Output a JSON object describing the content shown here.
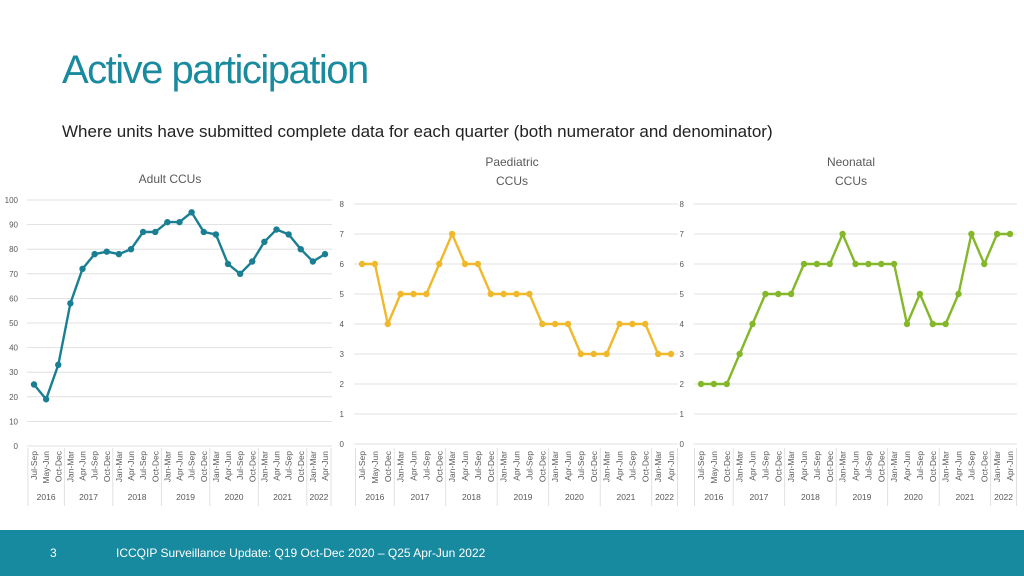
{
  "page": {
    "title": "Active participation",
    "subtitle": "Where units have submitted complete data for each quarter (both numerator and denominator)",
    "footer_number": "3",
    "footer_text": "ICCQIP Surveillance Update: Q19 Oct-Dec 2020 – Q25 Apr-Jun 2022"
  },
  "colors": {
    "title": "#1a8a9e",
    "footer_bg": "#178a9f",
    "adult": "#1a7f93",
    "paediatric": "#f0b92c",
    "neonatal": "#84b82a",
    "grid": "#d9d9d9",
    "tick_text": "#595959"
  },
  "chart_data": [
    {
      "type": "line",
      "title": "Adult CCUs",
      "ylim": [
        0,
        100
      ],
      "yticks": [
        0,
        10,
        20,
        30,
        40,
        50,
        60,
        70,
        80,
        90,
        100
      ],
      "grid": true,
      "categories": [
        "Jul-Sep",
        "May-Jun",
        "Oct-Dec",
        "Jan-Mar",
        "Apr-Jun",
        "Jul-Sep",
        "Oct-Dec",
        "Jan-Mar",
        "Apr-Jun",
        "Jul-Sep",
        "Oct-Dec",
        "Jan-Mar",
        "Apr-Jun",
        "Jul-Sep",
        "Oct-Dec",
        "Jan-Mar",
        "Apr-Jun",
        "Jul-Sep",
        "Oct-Dec",
        "Jan-Mar",
        "Apr-Jun",
        "Jul-Sep",
        "Oct-Dec",
        "Jan-Mar",
        "Apr-Jun"
      ],
      "years": [
        {
          "label": "2016",
          "span": 3
        },
        {
          "label": "2017",
          "span": 4
        },
        {
          "label": "2018",
          "span": 4
        },
        {
          "label": "2019",
          "span": 4
        },
        {
          "label": "2020",
          "span": 4
        },
        {
          "label": "2021",
          "span": 4
        },
        {
          "label": "2022",
          "span": 2
        }
      ],
      "series": [
        {
          "values": [
            25,
            19,
            33,
            58,
            72,
            78,
            79,
            78,
            80,
            87,
            87,
            91,
            91,
            95,
            87,
            86,
            74,
            70,
            75,
            83,
            88,
            86,
            80,
            75,
            78
          ]
        }
      ]
    },
    {
      "type": "line",
      "title": "Paediatric CCUs",
      "ylim": [
        0,
        8
      ],
      "yticks": [
        0,
        1,
        2,
        3,
        4,
        5,
        6,
        7,
        8
      ],
      "grid": true,
      "categories": [
        "Jul-Sep",
        "May-Jun",
        "Oct-Dec",
        "Jan-Mar",
        "Apr-Jun",
        "Jul-Sep",
        "Oct-Dec",
        "Jan-Mar",
        "Apr-Jun",
        "Jul-Sep",
        "Oct-Dec",
        "Jan-Mar",
        "Apr-Jun",
        "Jul-Sep",
        "Oct-Dec",
        "Jan-Mar",
        "Apr-Jun",
        "Jul-Sep",
        "Oct-Dec",
        "Jan-Mar",
        "Apr-Jun",
        "Jul-Sep",
        "Oct-Dec",
        "Jan-Mar",
        "Apr-Jun"
      ],
      "years": [
        {
          "label": "2016",
          "span": 3
        },
        {
          "label": "2017",
          "span": 4
        },
        {
          "label": "2018",
          "span": 4
        },
        {
          "label": "2019",
          "span": 4
        },
        {
          "label": "2020",
          "span": 4
        },
        {
          "label": "2021",
          "span": 4
        },
        {
          "label": "2022",
          "span": 2
        }
      ],
      "series": [
        {
          "values": [
            6,
            6,
            4,
            5,
            5,
            5,
            6,
            7,
            6,
            6,
            5,
            5,
            5,
            5,
            4,
            4,
            4,
            3,
            3,
            3,
            4,
            4,
            4,
            3,
            3
          ]
        }
      ]
    },
    {
      "type": "line",
      "title": "Neonatal CCUs",
      "ylim": [
        0,
        8
      ],
      "yticks": [
        0,
        1,
        2,
        3,
        4,
        5,
        6,
        7,
        8
      ],
      "grid": true,
      "categories": [
        "Jul-Sep",
        "May-Jun",
        "Oct-Dec",
        "Jan-Mar",
        "Apr-Jun",
        "Jul-Sep",
        "Oct-Dec",
        "Jan-Mar",
        "Apr-Jun",
        "Jul-Sep",
        "Oct-Dec",
        "Jan-Mar",
        "Apr-Jun",
        "Jul-Sep",
        "Oct-Dec",
        "Jan-Mar",
        "Apr-Jun",
        "Jul-Sep",
        "Oct-Dec",
        "Jan-Mar",
        "Apr-Jun",
        "Jul-Sep",
        "Oct-Dec",
        "Jan-Mar",
        "Apr-Jun"
      ],
      "years": [
        {
          "label": "2016",
          "span": 3
        },
        {
          "label": "2017",
          "span": 4
        },
        {
          "label": "2018",
          "span": 4
        },
        {
          "label": "2019",
          "span": 4
        },
        {
          "label": "2020",
          "span": 4
        },
        {
          "label": "2021",
          "span": 4
        },
        {
          "label": "2022",
          "span": 2
        }
      ],
      "series": [
        {
          "values": [
            2,
            2,
            2,
            3,
            4,
            5,
            5,
            5,
            6,
            6,
            6,
            7,
            6,
            6,
            6,
            6,
            4,
            5,
            4,
            4,
            5,
            7,
            6,
            7,
            7
          ]
        }
      ]
    }
  ]
}
